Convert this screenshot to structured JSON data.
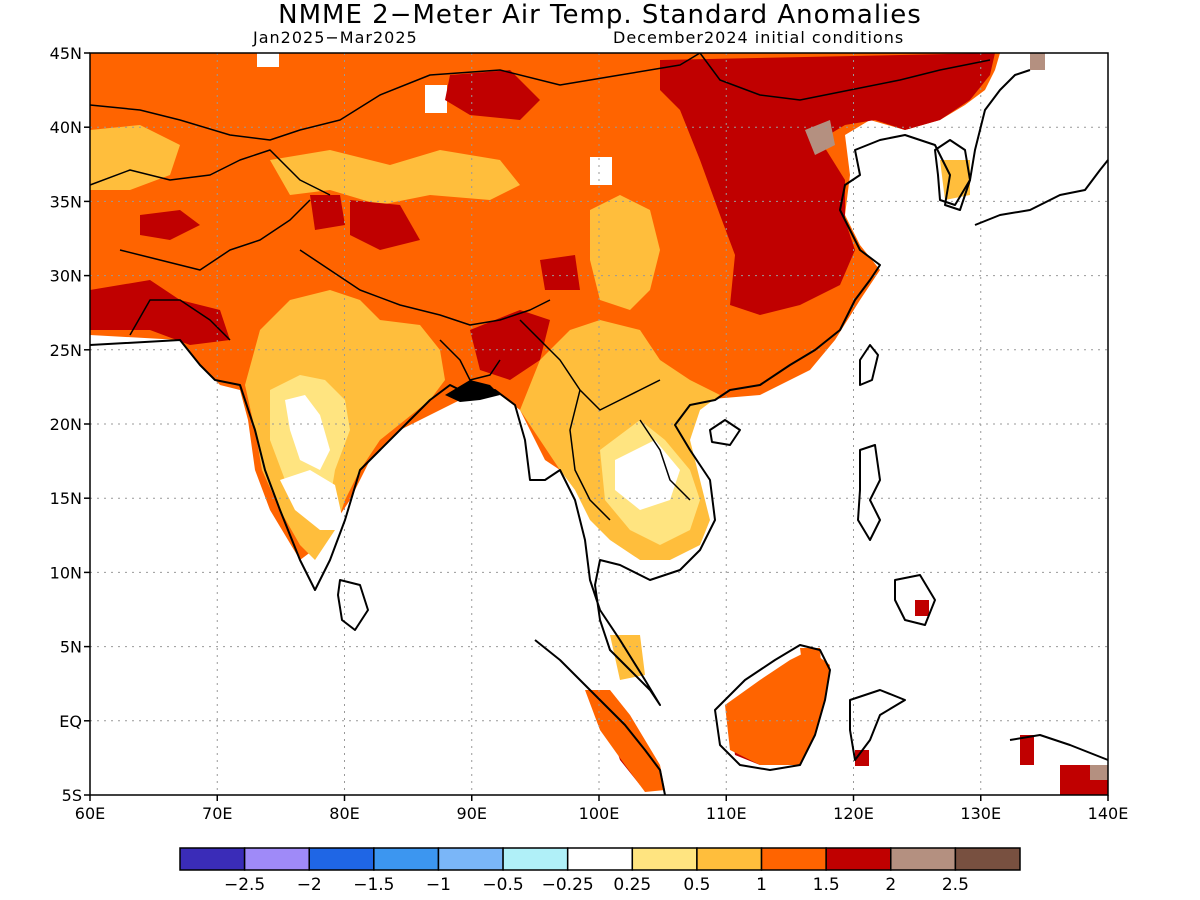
{
  "title": "NMME 2−Meter Air Temp. Standard Anomalies",
  "period": "Jan2025−Mar2025",
  "initial_conditions": "December2024 initial conditions",
  "lat_labels": [
    "45N",
    "40N",
    "35N",
    "30N",
    "25N",
    "20N",
    "15N",
    "10N",
    "5N",
    "EQ",
    "5S"
  ],
  "lon_labels": [
    "60E",
    "70E",
    "80E",
    "90E",
    "100E",
    "110E",
    "120E",
    "130E",
    "140E"
  ],
  "colorbar": {
    "colors": [
      "#3a2cb8",
      "#9f8af8",
      "#1f66e5",
      "#3c96f0",
      "#7ab6f8",
      "#b0f0f8",
      "#ffffff",
      "#ffe480",
      "#ffbe3c",
      "#ff6400",
      "#c00000",
      "#b49080",
      "#785040"
    ],
    "labels": [
      "−2.5",
      "−2",
      "−1.5",
      "−1",
      "−0.5",
      "−0.25",
      "0.25",
      "0.5",
      "1",
      "1.5",
      "2",
      "2.5"
    ]
  },
  "map_colors": {
    "white": "#ffffff",
    "yellow_light": "#ffe480",
    "yellow": "#ffbe3c",
    "orange": "#ff6400",
    "red": "#c00000",
    "brown_light": "#b49080"
  }
}
